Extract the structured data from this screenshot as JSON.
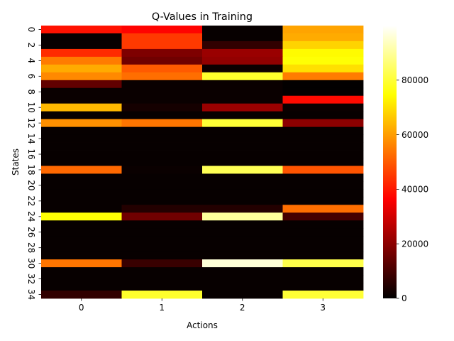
{
  "chart_data": {
    "type": "heatmap",
    "title": "Q-Values in Training",
    "xlabel": "Actions",
    "ylabel": "States",
    "x_categories": [
      "0",
      "1",
      "2",
      "3"
    ],
    "y_tick_labels": [
      "0",
      "2",
      "4",
      "6",
      "8",
      "10",
      "12",
      "14",
      "16",
      "18",
      "20",
      "22",
      "24",
      "26",
      "28",
      "30",
      "32",
      "34"
    ],
    "n_states": 35,
    "values": [
      [
        39000,
        37000,
        1000,
        61000
      ],
      [
        1000,
        45000,
        1000,
        62000
      ],
      [
        1000,
        45000,
        7000,
        68000
      ],
      [
        43000,
        18000,
        22000,
        74000
      ],
      [
        55000,
        16000,
        21000,
        75000
      ],
      [
        62000,
        50000,
        2000,
        70000
      ],
      [
        57000,
        53000,
        79000,
        55000
      ],
      [
        14000,
        1500,
        1500,
        500
      ],
      [
        1500,
        1500,
        1500,
        500
      ],
      [
        1500,
        1500,
        1500,
        38000
      ],
      [
        64000,
        3000,
        22000,
        1500
      ],
      [
        1000,
        1000,
        1000,
        1000
      ],
      [
        58000,
        54000,
        80000,
        20000
      ],
      [
        1000,
        1000,
        1000,
        1000
      ],
      [
        1000,
        1000,
        1000,
        1000
      ],
      [
        1000,
        1000,
        1000,
        1000
      ],
      [
        1000,
        1000,
        1000,
        1000
      ],
      [
        1000,
        1000,
        1000,
        1000
      ],
      [
        52000,
        1500,
        83000,
        49000
      ],
      [
        1000,
        1000,
        1000,
        1000
      ],
      [
        1000,
        1000,
        1000,
        1000
      ],
      [
        1000,
        1000,
        1000,
        1000
      ],
      [
        1000,
        1000,
        1000,
        1000
      ],
      [
        1000,
        5000,
        5000,
        53000
      ],
      [
        75000,
        16000,
        90000,
        10000
      ],
      [
        1000,
        1000,
        1000,
        1000
      ],
      [
        1000,
        1000,
        1000,
        1000
      ],
      [
        1000,
        1000,
        1000,
        1000
      ],
      [
        1000,
        1000,
        1000,
        1000
      ],
      [
        1000,
        1000,
        1000,
        1000
      ],
      [
        54000,
        8000,
        96000,
        82000
      ],
      [
        1000,
        1000,
        1000,
        1000
      ],
      [
        1000,
        1000,
        1000,
        1000
      ],
      [
        1000,
        1000,
        1000,
        1000
      ],
      [
        7000,
        79000,
        1000,
        80000
      ]
    ],
    "colormap": "hot",
    "colorbar": {
      "vmin": 0,
      "vmax": 100000,
      "ticks": [
        0,
        20000,
        40000,
        60000,
        80000
      ],
      "tick_labels": [
        "0",
        "20000",
        "40000",
        "60000",
        "80000"
      ]
    },
    "grid": false,
    "legend": "colorbar-right"
  }
}
